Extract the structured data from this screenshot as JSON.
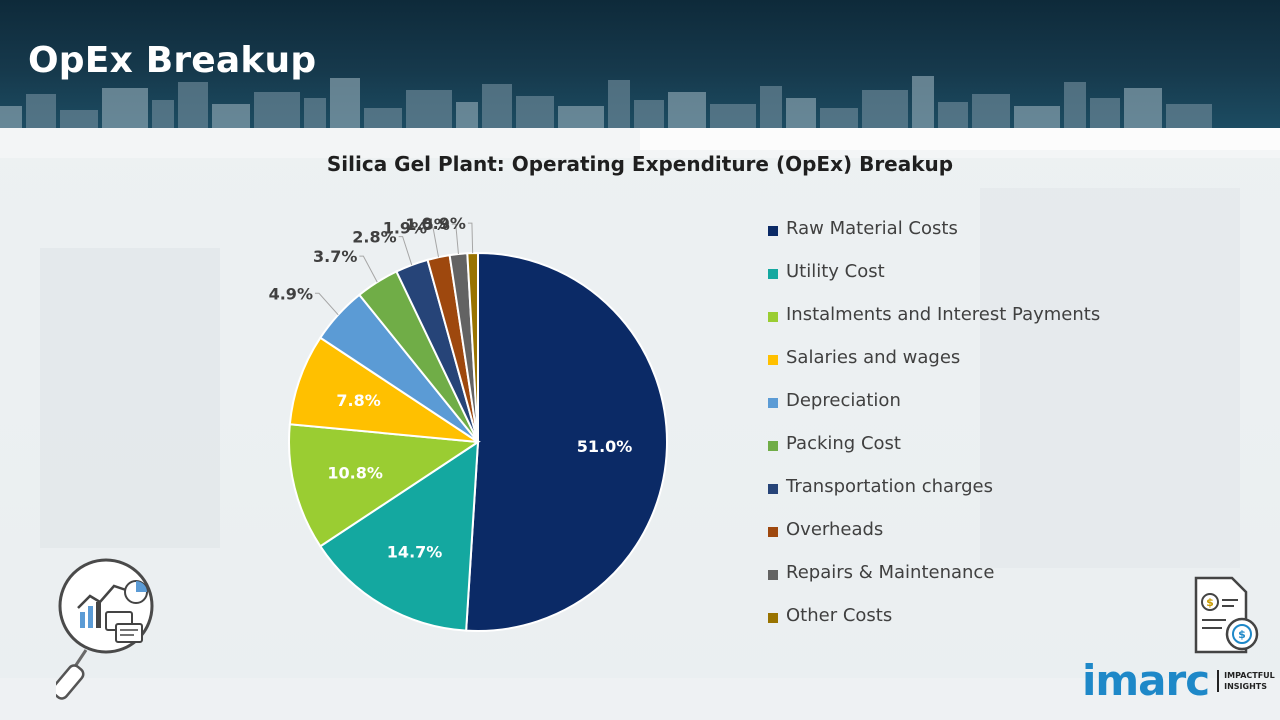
{
  "page": {
    "title": "OpEx Breakup"
  },
  "colors": {
    "banner": "#16394c",
    "accent_text": "#ffffff"
  },
  "chart_data": {
    "type": "pie",
    "title": "Silica Gel Plant: Operating Expenditure (OpEx) Breakup",
    "categories": [
      "Raw Material Costs",
      "Utility Cost",
      "Instalments and Interest Payments",
      "Salaries and wages",
      "Depreciation",
      "Packing Cost",
      "Transportation charges",
      "Overheads",
      "Repairs & Maintenance",
      "Other Costs"
    ],
    "values": [
      51.0,
      14.7,
      10.8,
      7.8,
      4.9,
      3.7,
      2.8,
      1.9,
      1.5,
      0.9
    ],
    "labels": [
      "51.0%",
      "14.7%",
      "10.8%",
      "7.8%",
      "4.9%",
      "3.7%",
      "2.8%",
      "1.9%",
      "1.5%",
      "0.9%"
    ],
    "colors": [
      "#0b2a66",
      "#14a8a0",
      "#9acd32",
      "#ffc000",
      "#5b9bd5",
      "#70ad47",
      "#264478",
      "#9e480e",
      "#636363",
      "#997300"
    ],
    "legend_position": "right"
  },
  "icons": {
    "magnifier": "analytics-magnifier-icon",
    "document": "cost-document-icon"
  },
  "logo": {
    "word": "imarc",
    "tagline_1": "IMPACTFUL",
    "tagline_2": "INSIGHTS"
  }
}
